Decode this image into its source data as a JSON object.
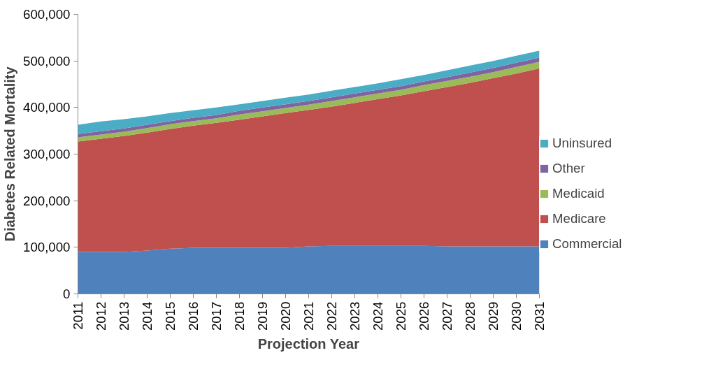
{
  "chart_data": {
    "type": "area",
    "stacked": true,
    "xlabel": "Projection Year",
    "ylabel": "Diabetes Related Mortality",
    "categories": [
      "2011",
      "2012",
      "2013",
      "2014",
      "2015",
      "2016",
      "2017",
      "2018",
      "2019",
      "2020",
      "2021",
      "2022",
      "2023",
      "2024",
      "2025",
      "2026",
      "2027",
      "2028",
      "2029",
      "2030",
      "2031"
    ],
    "series": [
      {
        "name": "Commercial",
        "color": "#4f81bd",
        "values": [
          90000,
          90000,
          90000,
          93000,
          97000,
          99000,
          99000,
          99000,
          99000,
          99000,
          102000,
          103000,
          103000,
          103000,
          103000,
          103000,
          102000,
          102000,
          102000,
          102000,
          102000
        ]
      },
      {
        "name": "Medicare",
        "color": "#c0504d",
        "values": [
          237000,
          243000,
          249000,
          253000,
          257000,
          262000,
          268000,
          275000,
          282000,
          289000,
          293000,
          299000,
          307000,
          315000,
          323000,
          332000,
          342000,
          351000,
          361000,
          371000,
          382000
        ]
      },
      {
        "name": "Medicaid",
        "color": "#9bbb59",
        "values": [
          9000,
          9000,
          9000,
          10000,
          10000,
          10000,
          10000,
          11000,
          11000,
          11000,
          11000,
          12000,
          12000,
          12000,
          12000,
          13000,
          13000,
          13000,
          13000,
          14000,
          14000
        ]
      },
      {
        "name": "Other",
        "color": "#8064a2",
        "values": [
          7000,
          7000,
          7000,
          7000,
          7000,
          7000,
          7000,
          8000,
          8000,
          8000,
          8000,
          8000,
          8000,
          8000,
          8000,
          8000,
          8000,
          9000,
          9000,
          9000,
          9000
        ]
      },
      {
        "name": "Uninsured",
        "color": "#4bacc6",
        "values": [
          20000,
          21000,
          20000,
          18000,
          17000,
          16000,
          16000,
          14000,
          14000,
          14000,
          14000,
          14000,
          14000,
          14000,
          15000,
          14000,
          15000,
          15000,
          15000,
          15000,
          15000
        ]
      }
    ],
    "ylim": [
      0,
      600000
    ],
    "yticks": [
      0,
      {
        "value": 100000,
        "label": "100,000"
      },
      {
        "value": 200000,
        "label": "200,000"
      },
      {
        "value": 300000,
        "label": "300,000"
      },
      {
        "value": 400000,
        "label": "400,000"
      },
      {
        "value": 500000,
        "label": "500,000"
      },
      {
        "value": 600000,
        "label": "600,000"
      }
    ],
    "grid": false,
    "legend": "right"
  }
}
